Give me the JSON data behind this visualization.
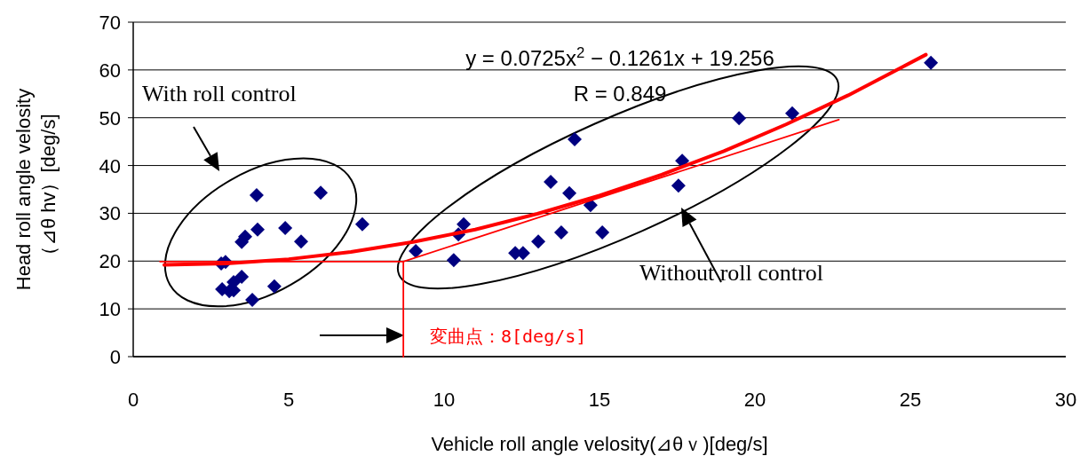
{
  "chart_data": {
    "type": "scatter",
    "xlabel": "Vehicle roll angle velosity(⊿θｖ)[deg/s]",
    "ylabel": "Head roll angle velosity （⊿θ hv）[deg/s]",
    "xlim": [
      0,
      30
    ],
    "ylim": [
      0,
      70
    ],
    "xticks": [
      0,
      5,
      10,
      15,
      20,
      25,
      30
    ],
    "yticks": [
      0,
      10,
      20,
      30,
      40,
      50,
      60,
      70
    ],
    "grid": "y",
    "series": [
      {
        "marker": "diamond",
        "color": "#000080",
        "x": [
          3.97,
          6.03,
          7.37,
          4.0,
          4.89,
          5.4,
          3.6,
          3.49,
          2.83,
          2.97,
          3.49,
          3.23,
          2.86,
          3.09,
          3.23,
          4.54,
          3.83,
          9.09,
          10.31,
          10.46,
          10.63,
          12.29,
          12.54,
          13.03,
          13.43,
          13.77,
          14.03,
          14.2,
          14.71,
          15.09,
          17.66,
          17.54,
          19.49,
          21.2,
          25.66
        ],
        "values": [
          33.8,
          34.3,
          27.7,
          26.6,
          26.9,
          24.1,
          25.1,
          24.0,
          19.5,
          19.8,
          16.7,
          15.6,
          14.1,
          13.7,
          13.9,
          14.7,
          11.9,
          22.1,
          20.2,
          25.6,
          27.7,
          21.7,
          21.7,
          24.1,
          36.6,
          26.0,
          34.2,
          45.5,
          31.7,
          26.0,
          41.0,
          35.8,
          49.9,
          50.9,
          61.5
        ]
      },
      {
        "type": "line",
        "color": "#ff0000",
        "x": [
          1,
          3,
          5,
          7,
          9,
          11,
          13,
          15,
          17,
          19,
          21,
          23,
          25.5
        ],
        "values": [
          19.2,
          19.5,
          20.4,
          21.9,
          24.0,
          26.6,
          29.9,
          33.7,
          38.1,
          43.0,
          48.6,
          54.7,
          63.2
        ]
      },
      {
        "type": "line",
        "color": "#ff0000",
        "x": [
          0.86,
          8.69,
          22.7,
          null,
          8.69,
          8.69
        ],
        "values": [
          19.9,
          19.9,
          49.6,
          null,
          19.9,
          0
        ]
      }
    ],
    "annotations": [
      "y = 0.0725x$^{2}$ − 0.1261x + 19.256",
      "R = 0.849",
      "With roll control",
      "Without roll control",
      "変曲点：8[deg/s]"
    ]
  }
}
